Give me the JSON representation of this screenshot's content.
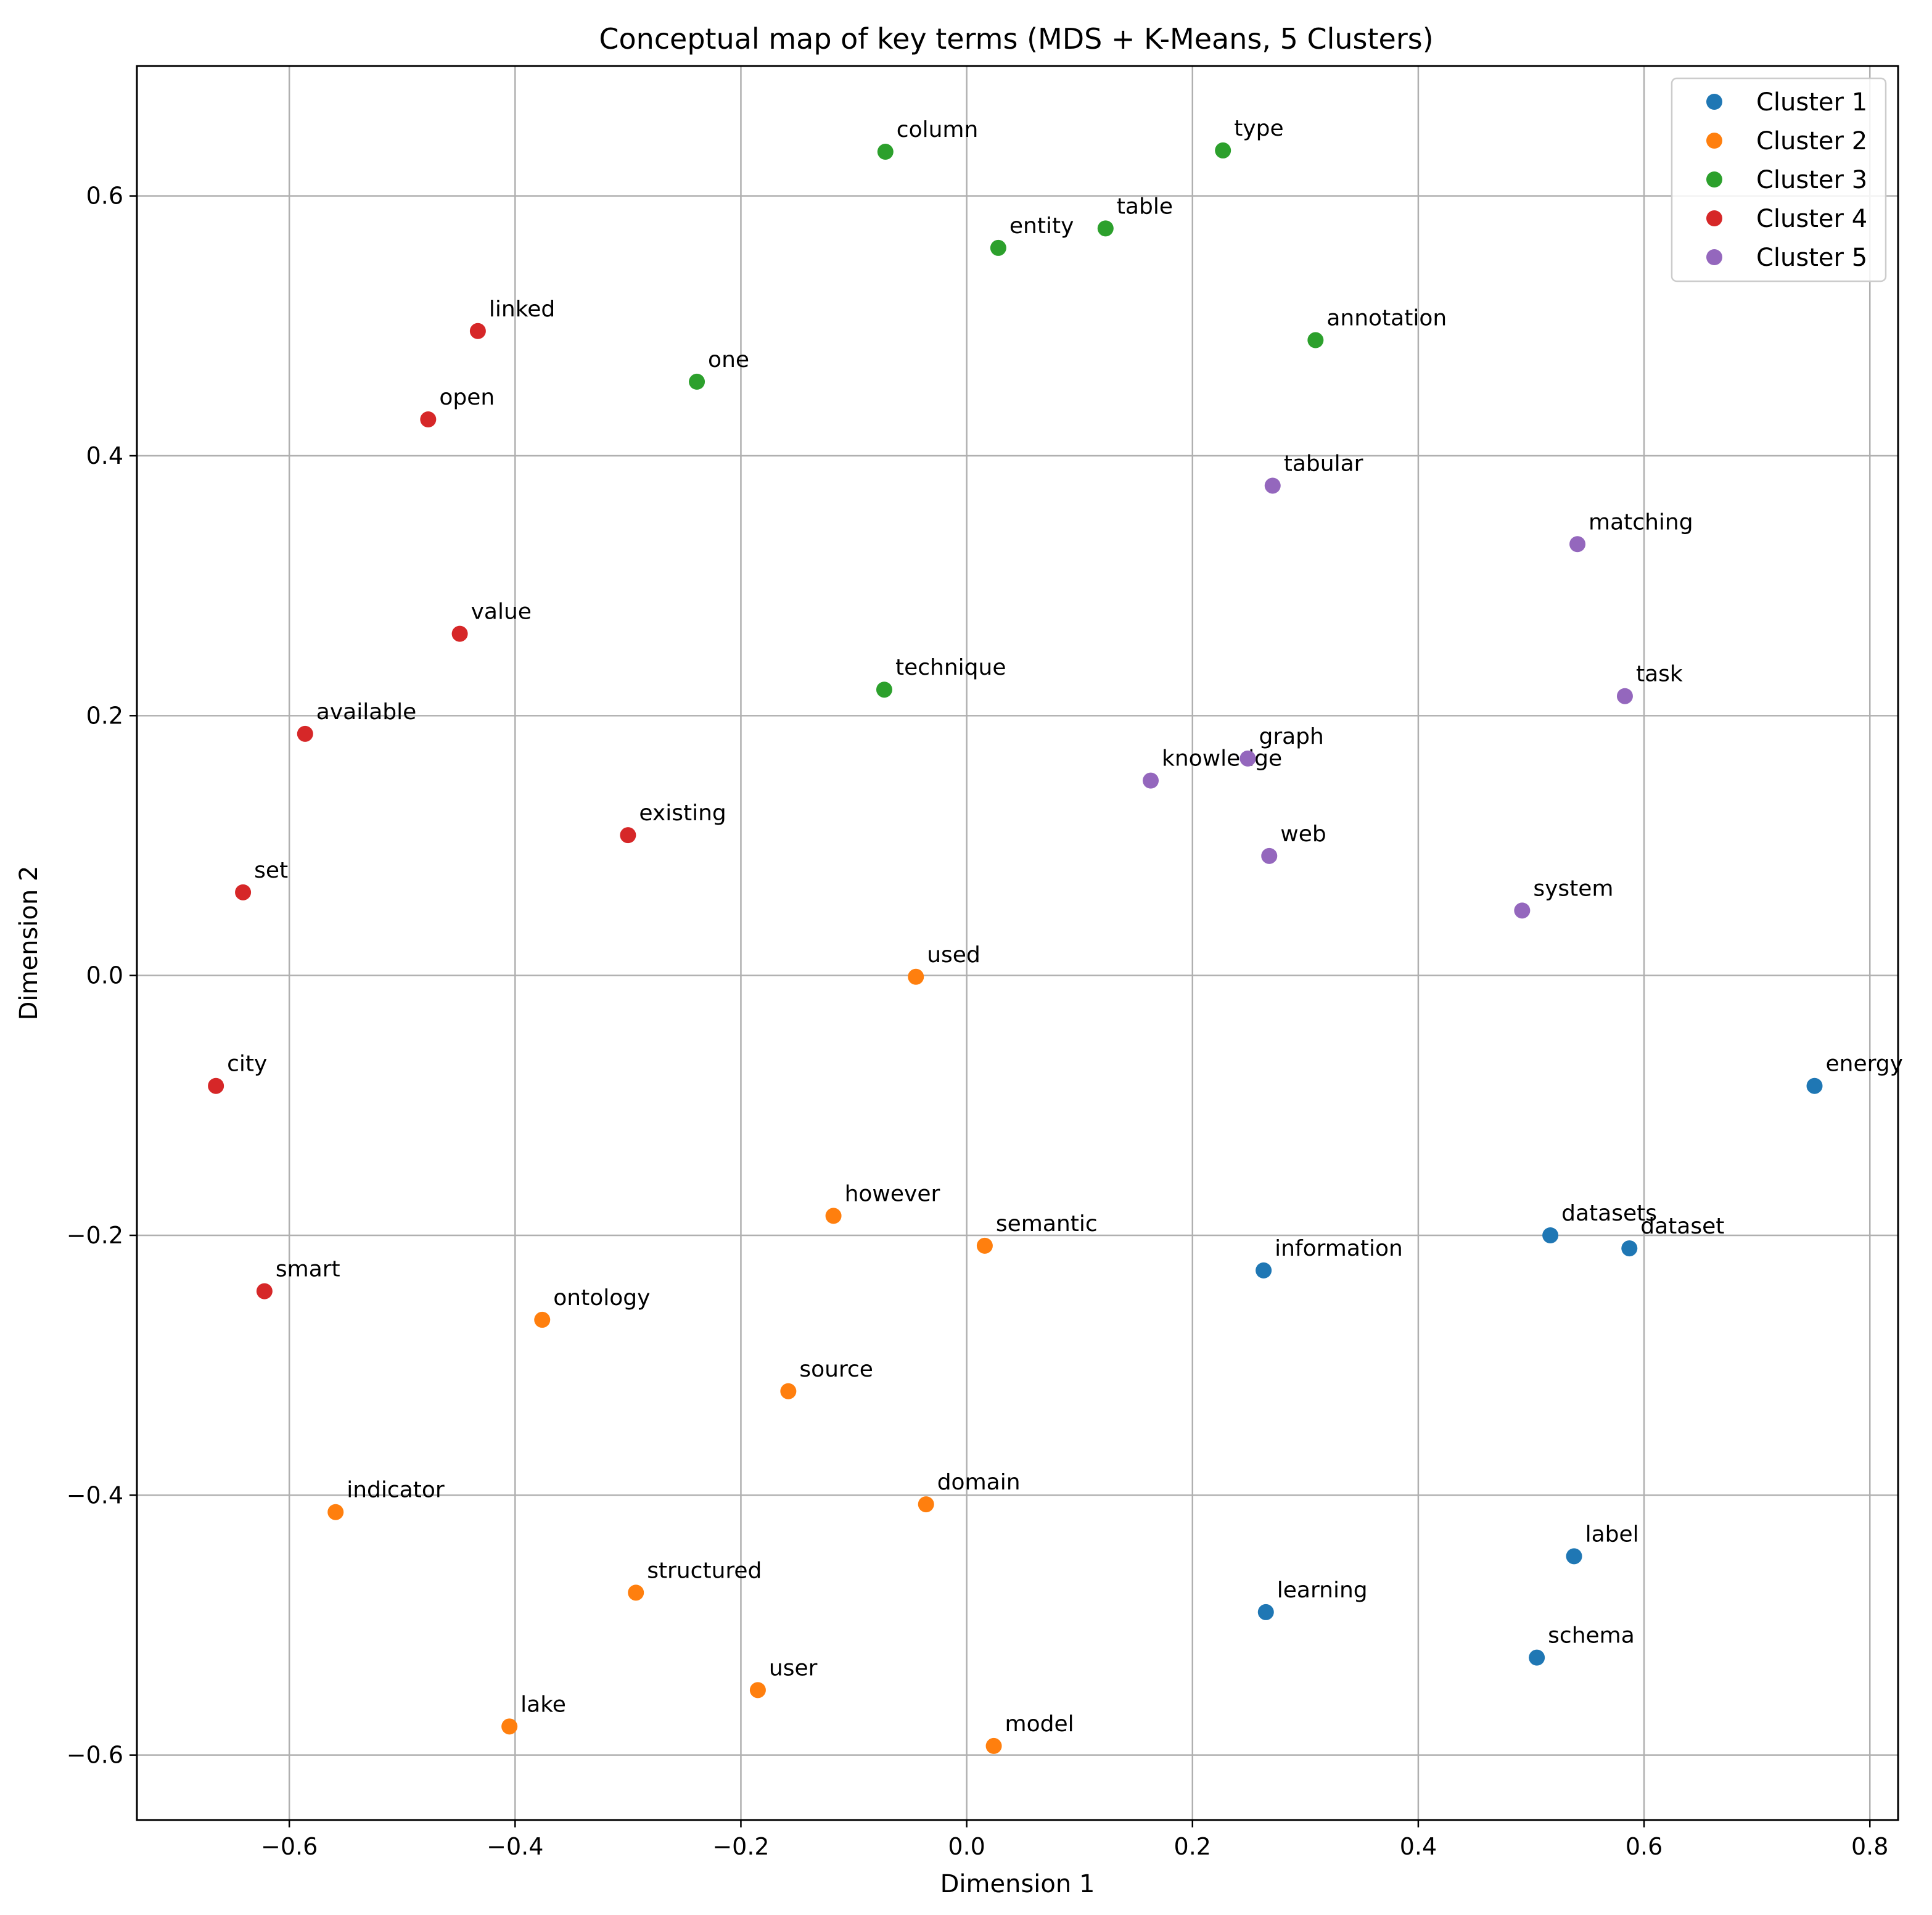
{
  "chart_data": {
    "type": "scatter",
    "title": "Conceptual map of key terms (MDS + K-Means, 5 Clusters)",
    "xlabel": "Dimension 1",
    "ylabel": "Dimension 2",
    "xlim": [
      -0.735,
      0.825
    ],
    "ylim": [
      -0.65,
      0.7
    ],
    "xticks": [
      -0.6,
      -0.4,
      -0.2,
      0.0,
      0.2,
      0.4,
      0.6,
      0.8
    ],
    "xtick_labels": [
      "−0.6",
      "−0.4",
      "−0.2",
      "0.0",
      "0.2",
      "0.4",
      "0.6",
      "0.8"
    ],
    "yticks": [
      -0.6,
      -0.4,
      -0.2,
      0.0,
      0.2,
      0.4,
      0.6
    ],
    "ytick_labels": [
      "−0.6",
      "−0.4",
      "−0.2",
      "0.0",
      "0.2",
      "0.4",
      "0.6"
    ],
    "grid": true,
    "legend_position": "top-right",
    "series": [
      {
        "name": "Cluster 1",
        "color": "#1f77b4",
        "points": [
          {
            "label": "energy",
            "x": 0.751,
            "y": -0.085
          },
          {
            "label": "datasets",
            "x": 0.517,
            "y": -0.2
          },
          {
            "label": "dataset",
            "x": 0.587,
            "y": -0.21
          },
          {
            "label": "information",
            "x": 0.263,
            "y": -0.227
          },
          {
            "label": "label",
            "x": 0.538,
            "y": -0.447
          },
          {
            "label": "learning",
            "x": 0.265,
            "y": -0.49
          },
          {
            "label": "schema",
            "x": 0.505,
            "y": -0.525
          }
        ]
      },
      {
        "name": "Cluster 2",
        "color": "#ff7f0e",
        "points": [
          {
            "label": "used",
            "x": -0.045,
            "y": -0.001
          },
          {
            "label": "however",
            "x": -0.118,
            "y": -0.185
          },
          {
            "label": "semantic",
            "x": 0.016,
            "y": -0.208
          },
          {
            "label": "ontology",
            "x": -0.376,
            "y": -0.265
          },
          {
            "label": "source",
            "x": -0.158,
            "y": -0.32
          },
          {
            "label": "indicator",
            "x": -0.559,
            "y": -0.413
          },
          {
            "label": "domain",
            "x": -0.036,
            "y": -0.407
          },
          {
            "label": "structured",
            "x": -0.293,
            "y": -0.475
          },
          {
            "label": "user",
            "x": -0.185,
            "y": -0.55
          },
          {
            "label": "lake",
            "x": -0.405,
            "y": -0.578
          },
          {
            "label": "model",
            "x": 0.024,
            "y": -0.593
          }
        ]
      },
      {
        "name": "Cluster 3",
        "color": "#2ca02c",
        "points": [
          {
            "label": "column",
            "x": -0.072,
            "y": 0.634
          },
          {
            "label": "type",
            "x": 0.227,
            "y": 0.635
          },
          {
            "label": "entity",
            "x": 0.028,
            "y": 0.56
          },
          {
            "label": "table",
            "x": 0.123,
            "y": 0.575
          },
          {
            "label": "annotation",
            "x": 0.309,
            "y": 0.489
          },
          {
            "label": "one",
            "x": -0.239,
            "y": 0.457
          },
          {
            "label": "technique",
            "x": -0.073,
            "y": 0.22
          }
        ]
      },
      {
        "name": "Cluster 4",
        "color": "#d62728",
        "points": [
          {
            "label": "linked",
            "x": -0.433,
            "y": 0.496
          },
          {
            "label": "open",
            "x": -0.477,
            "y": 0.428
          },
          {
            "label": "value",
            "x": -0.449,
            "y": 0.263
          },
          {
            "label": "available",
            "x": -0.586,
            "y": 0.186
          },
          {
            "label": "existing",
            "x": -0.3,
            "y": 0.108
          },
          {
            "label": "set",
            "x": -0.641,
            "y": 0.064
          },
          {
            "label": "city",
            "x": -0.665,
            "y": -0.085
          },
          {
            "label": "smart",
            "x": -0.622,
            "y": -0.243
          }
        ]
      },
      {
        "name": "Cluster 5",
        "color": "#9467bd",
        "points": [
          {
            "label": "tabular",
            "x": 0.271,
            "y": 0.377
          },
          {
            "label": "matching",
            "x": 0.541,
            "y": 0.332
          },
          {
            "label": "task",
            "x": 0.583,
            "y": 0.215
          },
          {
            "label": "graph",
            "x": 0.249,
            "y": 0.167
          },
          {
            "label": "knowledge",
            "x": 0.163,
            "y": 0.15
          },
          {
            "label": "web",
            "x": 0.268,
            "y": 0.092
          },
          {
            "label": "system",
            "x": 0.492,
            "y": 0.05
          }
        ]
      }
    ]
  }
}
